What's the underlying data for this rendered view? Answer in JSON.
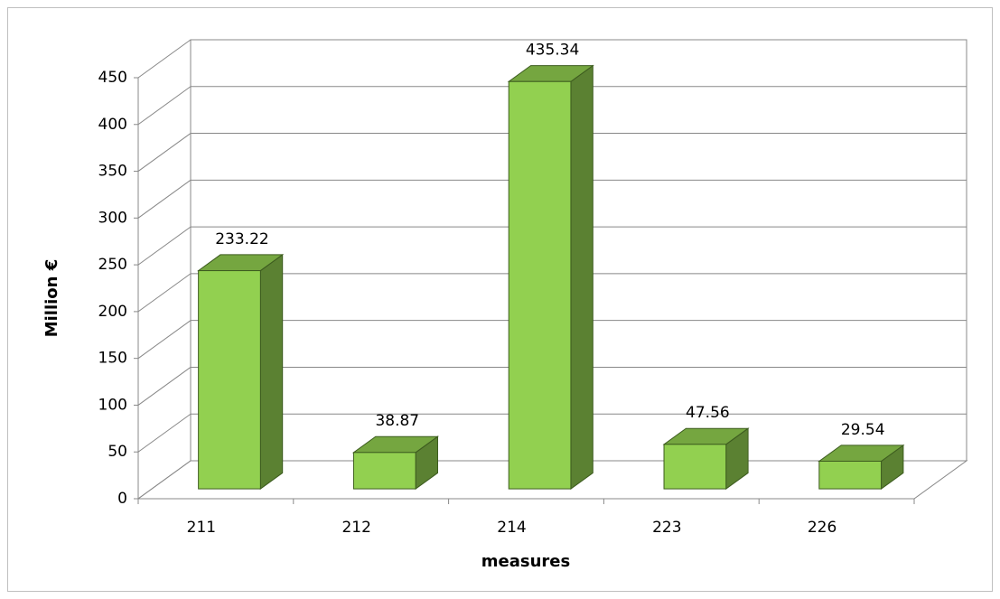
{
  "chart_data": {
    "type": "bar3d",
    "categories": [
      "211",
      "212",
      "214",
      "223",
      "226"
    ],
    "values": [
      233.22,
      38.87,
      435.34,
      47.56,
      29.54
    ],
    "color": "#92d050",
    "ylim": [
      0,
      450
    ],
    "yticks": [
      0,
      50,
      100,
      150,
      200,
      250,
      300,
      350,
      400,
      450
    ],
    "grid": true,
    "y_label": "Million  €",
    "x_label": "measures"
  }
}
